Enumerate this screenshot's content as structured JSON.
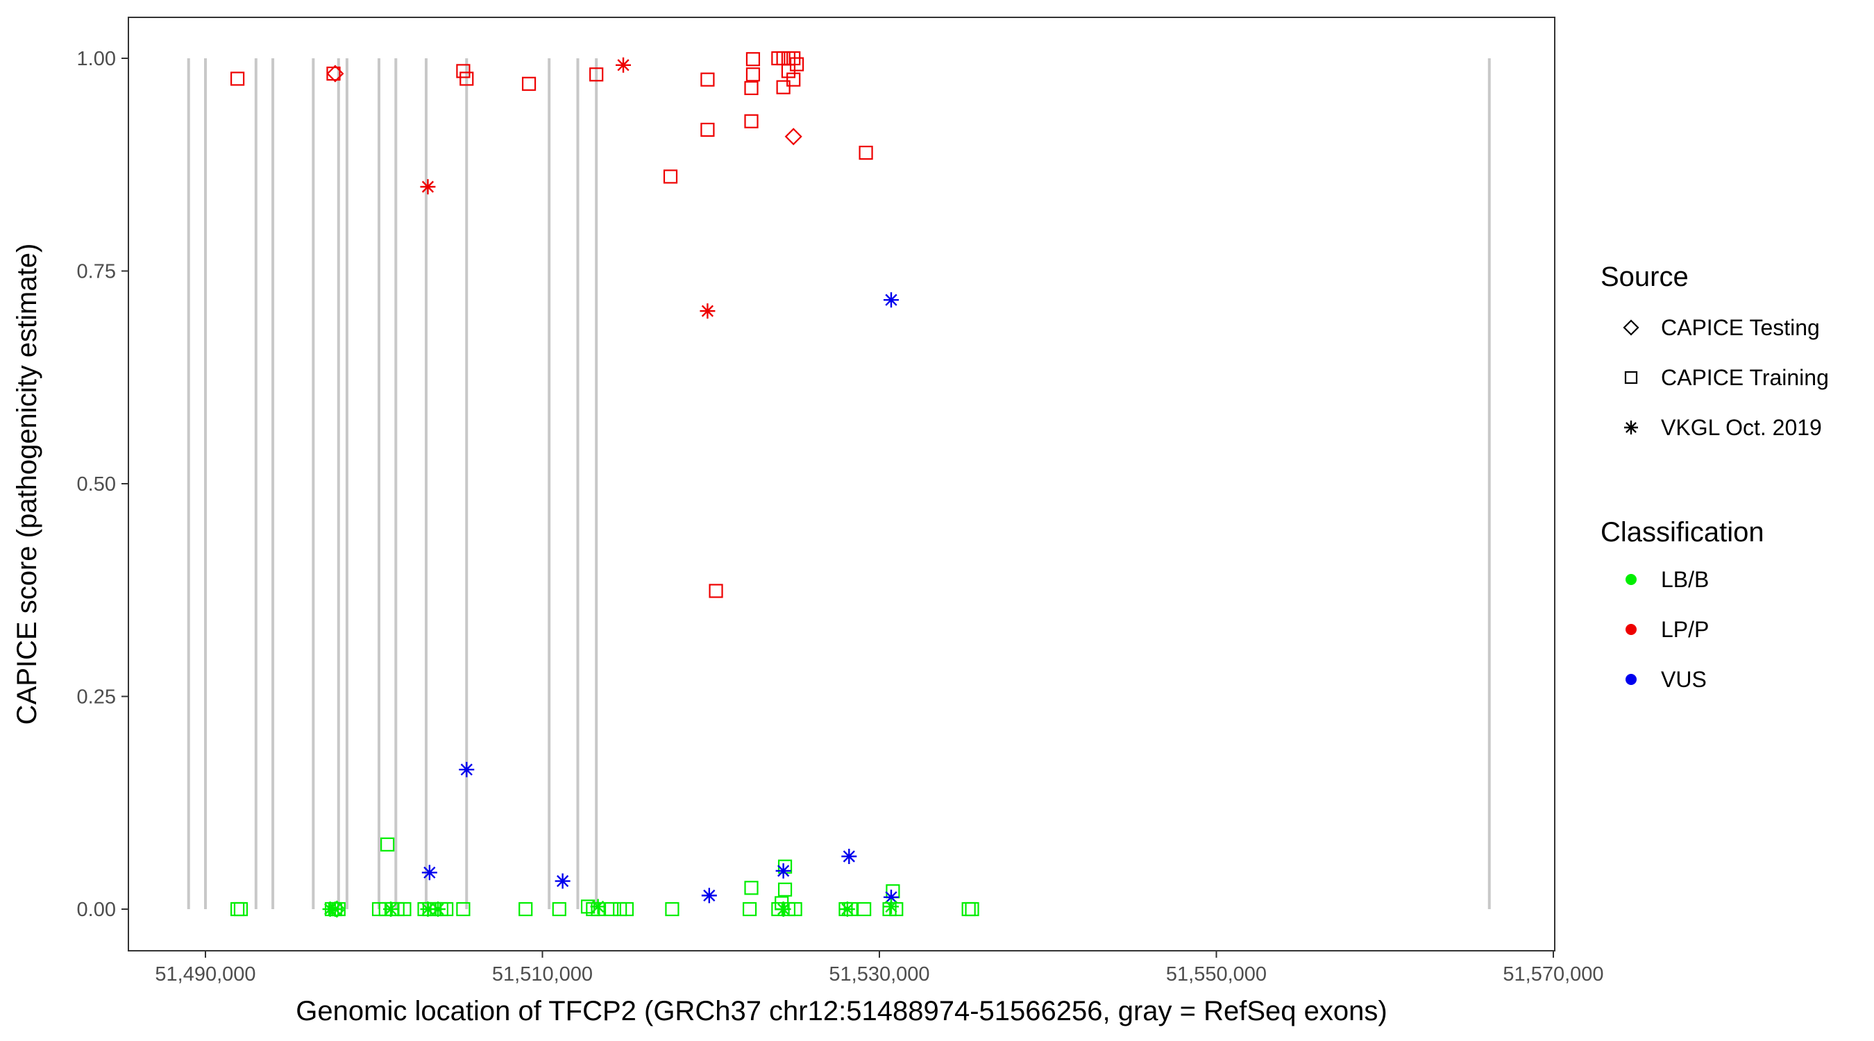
{
  "chart_data": {
    "type": "scatter",
    "title": "",
    "xlabel": "Genomic location of TFCP2 (GRCh37 chr12:51488974-51566256, gray = RefSeq exons)",
    "ylabel": "CAPICE score (pathogenicity estimate)",
    "xlim": [
      51482000,
      51570000
    ],
    "ylim": [
      -0.048,
      1.048
    ],
    "x_ticks": [
      51490000,
      51510000,
      51530000,
      51550000,
      51570000
    ],
    "x_tick_labels": [
      "51,490,000",
      "51,510,000",
      "51,530,000",
      "51,550,000",
      "51,570,000"
    ],
    "y_ticks": [
      0,
      0.25,
      0.5,
      0.75,
      1.0
    ],
    "y_tick_labels": [
      "0.00",
      "0.25",
      "0.50",
      "0.75",
      "1.00"
    ],
    "grid": false,
    "legend_position": "right",
    "exon_color": "#c8c8c8",
    "exons": [
      {
        "start": 51489000,
        "end": 51489000
      },
      {
        "start": 51490000,
        "end": 51490000
      },
      {
        "start": 51493000,
        "end": 51493000
      },
      {
        "start": 51494000,
        "end": 51494000
      },
      {
        "start": 51496400,
        "end": 51496400
      },
      {
        "start": 51497900,
        "end": 51497900
      },
      {
        "start": 51498400,
        "end": 51498400
      },
      {
        "start": 51500300,
        "end": 51500300
      },
      {
        "start": 51501300,
        "end": 51501300
      },
      {
        "start": 51503100,
        "end": 51503100
      },
      {
        "start": 51505500,
        "end": 51505500
      },
      {
        "start": 51510400,
        "end": 51510400
      },
      {
        "start": 51512100,
        "end": 51512100
      },
      {
        "start": 51513200,
        "end": 51513200
      },
      {
        "start": 51566200,
        "end": 51566200
      }
    ],
    "legends": {
      "source": {
        "title": "Source",
        "items": [
          {
            "label": "CAPICE Testing",
            "shape": "diamond"
          },
          {
            "label": "CAPICE Training",
            "shape": "square"
          },
          {
            "label": "VKGL Oct. 2019",
            "shape": "asterisk"
          }
        ]
      },
      "classification": {
        "title": "Classification",
        "items": [
          {
            "label": "LB/B",
            "color": "#00ee00"
          },
          {
            "label": "LP/P",
            "color": "#ee0000"
          },
          {
            "label": "VUS",
            "color": "#0000ee"
          }
        ]
      }
    },
    "series": [
      {
        "source": "CAPICE Testing",
        "classification": "LP/P",
        "points": [
          [
            51497700,
            0.982
          ],
          [
            51524900,
            0.908
          ]
        ]
      },
      {
        "source": "CAPICE Testing",
        "classification": "LB/B",
        "points": [
          [
            51497800,
            0.0
          ]
        ]
      },
      {
        "source": "CAPICE Training",
        "classification": "LP/P",
        "points": [
          [
            51491900,
            0.976
          ],
          [
            51497600,
            0.982
          ],
          [
            51505300,
            0.985
          ],
          [
            51505500,
            0.976
          ],
          [
            51509200,
            0.97
          ],
          [
            51513200,
            0.981
          ],
          [
            51517600,
            0.861
          ],
          [
            51519800,
            0.975
          ],
          [
            51519800,
            0.916
          ],
          [
            51520300,
            0.374
          ],
          [
            51522500,
            0.999
          ],
          [
            51522500,
            0.981
          ],
          [
            51522400,
            0.965
          ],
          [
            51522400,
            0.926
          ],
          [
            51524000,
            1.0
          ],
          [
            51524300,
            1.0
          ],
          [
            51524600,
            1.0
          ],
          [
            51524900,
            1.0
          ],
          [
            51525100,
            0.993
          ],
          [
            51524600,
            0.985
          ],
          [
            51524900,
            0.975
          ],
          [
            51524300,
            0.966
          ],
          [
            51529200,
            0.889
          ]
        ]
      },
      {
        "source": "CAPICE Training",
        "classification": "LB/B",
        "points": [
          [
            51491900,
            0.0
          ],
          [
            51492100,
            0.0
          ],
          [
            51497500,
            0.0
          ],
          [
            51497700,
            0.0
          ],
          [
            51497900,
            0.0
          ],
          [
            51500300,
            0.0
          ],
          [
            51500700,
            0.0
          ],
          [
            51500800,
            0.076
          ],
          [
            51501100,
            0.0
          ],
          [
            51501400,
            0.0
          ],
          [
            51501800,
            0.0
          ],
          [
            51503000,
            0.0
          ],
          [
            51503300,
            0.0
          ],
          [
            51503600,
            0.0
          ],
          [
            51504000,
            0.0
          ],
          [
            51504300,
            0.0
          ],
          [
            51505300,
            0.0
          ],
          [
            51509000,
            0.0
          ],
          [
            51511000,
            0.0
          ],
          [
            51512700,
            0.003
          ],
          [
            51513000,
            0.0
          ],
          [
            51513300,
            0.0
          ],
          [
            51514100,
            0.0
          ],
          [
            51514600,
            0.0
          ],
          [
            51515000,
            0.0
          ],
          [
            51517700,
            0.0
          ],
          [
            51522300,
            0.0
          ],
          [
            51522400,
            0.025
          ],
          [
            51524000,
            0.0
          ],
          [
            51524200,
            0.007
          ],
          [
            51524400,
            0.05
          ],
          [
            51524400,
            0.023
          ],
          [
            51524600,
            0.0
          ],
          [
            51525000,
            0.0
          ],
          [
            51528000,
            0.0
          ],
          [
            51528300,
            0.0
          ],
          [
            51529100,
            0.0
          ],
          [
            51530600,
            0.0
          ],
          [
            51530800,
            0.021
          ],
          [
            51531000,
            0.0
          ],
          [
            51535300,
            0.0
          ],
          [
            51535500,
            0.0
          ]
        ]
      },
      {
        "source": "VKGL Oct. 2019",
        "classification": "LP/P",
        "points": [
          [
            51503200,
            0.849
          ],
          [
            51514800,
            0.992
          ],
          [
            51519800,
            0.703
          ]
        ]
      },
      {
        "source": "VKGL Oct. 2019",
        "classification": "VUS",
        "points": [
          [
            51503300,
            0.043
          ],
          [
            51505500,
            0.164
          ],
          [
            51511200,
            0.033
          ],
          [
            51519900,
            0.016
          ],
          [
            51524300,
            0.045
          ],
          [
            51528200,
            0.062
          ],
          [
            51530700,
            0.716
          ],
          [
            51530700,
            0.014
          ]
        ]
      },
      {
        "source": "VKGL Oct. 2019",
        "classification": "LB/B",
        "points": [
          [
            51497400,
            0.0
          ],
          [
            51497700,
            0.0
          ],
          [
            51501000,
            0.0
          ],
          [
            51503200,
            0.0
          ],
          [
            51503800,
            0.0
          ],
          [
            51513300,
            0.003
          ],
          [
            51524300,
            0.0
          ],
          [
            51528100,
            0.0
          ],
          [
            51530700,
            0.003
          ]
        ]
      }
    ]
  }
}
